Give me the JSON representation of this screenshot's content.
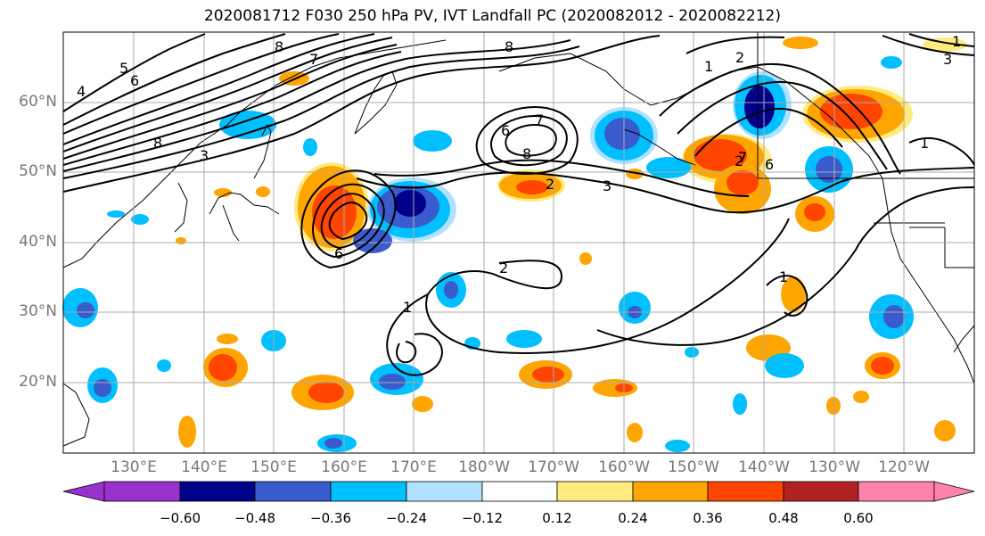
{
  "title": "2020081712 F030 250 hPa PV, IVT Landfall PC (2020082012 - 2020082212)",
  "lat_labels": [
    "60°N",
    "50°N",
    "40°N",
    "30°N",
    "20°N"
  ],
  "lon_labels": [
    "130°E",
    "140°E",
    "150°E",
    "160°E",
    "170°E",
    "180°W",
    "170°W",
    "160°W",
    "150°W",
    "140°W",
    "130°W",
    "120°W"
  ],
  "contour_labels": [
    {
      "text": "8",
      "id": "pv8-a"
    },
    {
      "text": "7",
      "id": "pv7-a"
    },
    {
      "text": "6",
      "id": "pv6-a"
    },
    {
      "text": "5",
      "id": "pv5-a"
    },
    {
      "text": "4",
      "id": "pv4-a"
    },
    {
      "text": "8",
      "id": "pv8-b"
    },
    {
      "text": "3",
      "id": "pv3-a"
    },
    {
      "text": "6",
      "id": "pv6-b"
    },
    {
      "text": "7",
      "id": "pv7-b"
    },
    {
      "text": "8",
      "id": "pv8-c"
    },
    {
      "text": "3",
      "id": "pv3-b"
    },
    {
      "text": "2",
      "id": "pv2-a"
    },
    {
      "text": "1",
      "id": "pv1-a"
    },
    {
      "text": "2",
      "id": "pv2-b"
    },
    {
      "text": "1",
      "id": "pv1-b"
    },
    {
      "text": "6",
      "id": "pv6-c"
    },
    {
      "text": "2",
      "id": "pv2-c"
    },
    {
      "text": "1",
      "id": "pv1-c"
    },
    {
      "text": "1",
      "id": "pv1-d"
    },
    {
      "text": "2",
      "id": "pv2-d"
    },
    {
      "text": "1",
      "id": "pv1-e"
    },
    {
      "text": "6",
      "id": "pv6-d"
    },
    {
      "text": "7",
      "id": "pv7-c"
    },
    {
      "text": "8",
      "id": "pv8-d"
    },
    {
      "text": "3",
      "id": "pv3-c"
    }
  ],
  "colorbar": {
    "ticks": [
      "−0.60",
      "−0.48",
      "−0.36",
      "−0.24",
      "−0.12",
      "0.12",
      "0.24",
      "0.36",
      "0.48",
      "0.60"
    ],
    "colors": [
      "#9932cc",
      "#00008b",
      "#3a5bcc",
      "#00bfff",
      "#b0e2ff",
      "#ffffff",
      "#ffeb80",
      "#ffa500",
      "#ff4500",
      "#b22222",
      "#ff82ab"
    ]
  },
  "colors": {
    "neg_strong": "#00008b",
    "neg_mid": "#3a5bcc",
    "neg_weak": "#00bfff",
    "neg_faint": "#b0e2ff",
    "pos_faint": "#ffeb80",
    "pos_weak": "#ffa500",
    "pos_mid": "#ff4500",
    "pos_strong": "#b22222",
    "grid": "#aaaaaa",
    "contour": "#000000"
  }
}
